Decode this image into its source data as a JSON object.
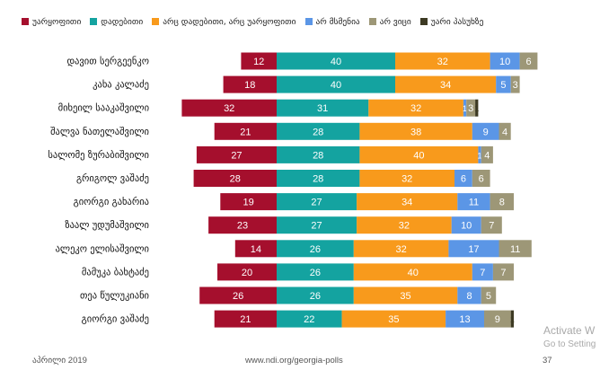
{
  "chart_data": {
    "type": "bar",
    "orientation": "horizontal",
    "stacked": true,
    "categories": [
      "დავით სერგეენკო",
      "კახა კალაძე",
      "მიხეილ სააკაშვილი",
      "შალვა ნათელაშვილი",
      "სალომე ზურაბიშვილი",
      "გრიგოლ ვაშაძე",
      "გიორგი გახარია",
      "ზაალ უდუმაშვილი",
      "ალეკო ელისაშვილი",
      "მამუკა ბახტაძე",
      "თეა წულუკიანი",
      "გიორგი ვაშაძე"
    ],
    "series": [
      {
        "name": "უარყოფითი",
        "color": "#a50f2d",
        "values": [
          12,
          18,
          32,
          21,
          27,
          28,
          19,
          23,
          14,
          20,
          26,
          21
        ]
      },
      {
        "name": "დადებითი",
        "color": "#14a3a0",
        "values": [
          40,
          40,
          31,
          28,
          28,
          28,
          27,
          27,
          26,
          26,
          26,
          22
        ]
      },
      {
        "name": "არც დადებითი, არც უარყოფითი",
        "color": "#f89a1c",
        "values": [
          32,
          34,
          32,
          38,
          40,
          32,
          34,
          32,
          32,
          40,
          35,
          35
        ]
      },
      {
        "name": "არ მსმენია",
        "color": "#5b96e6",
        "values": [
          10,
          5,
          1,
          9,
          1,
          6,
          11,
          10,
          17,
          7,
          8,
          13
        ]
      },
      {
        "name": "არ ვიცი",
        "color": "#9d9777",
        "values": [
          6,
          3,
          3,
          4,
          4,
          6,
          8,
          7,
          11,
          7,
          5,
          9
        ]
      },
      {
        "name": "უარი პასუხზე",
        "color": "#3d3a23",
        "values": [
          0,
          0,
          1,
          0,
          0,
          0,
          0,
          0,
          0,
          0,
          0,
          1
        ]
      }
    ],
    "xlim": [
      -32,
      100
    ],
    "legend_position": "top"
  },
  "footer": {
    "left": "აპრილი 2019",
    "center": "www.ndi.org/georgia-polls",
    "page_number": "37"
  },
  "watermark": {
    "line1": "Activate W",
    "line2": "Go to Setting"
  }
}
